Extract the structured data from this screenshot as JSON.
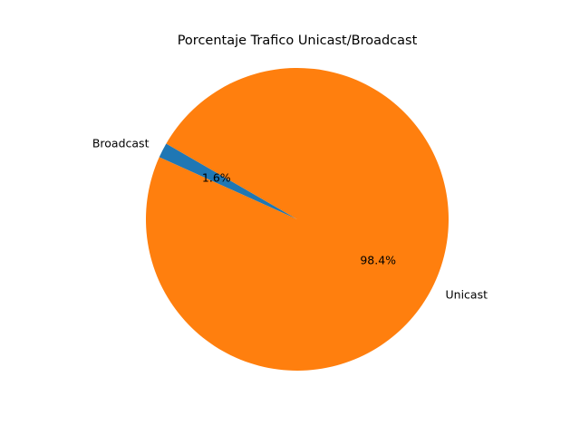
{
  "chart_data": {
    "type": "pie",
    "title": "Porcentaje Trafico Unicast/Broadcast",
    "start_angle_deg": 150,
    "slices": [
      {
        "label": "Broadcast",
        "value": 1.6,
        "pct_label": "1.6%",
        "color": "#1f77b4"
      },
      {
        "label": "Unicast",
        "value": 98.4,
        "pct_label": "98.4%",
        "color": "#ff7f0e"
      }
    ],
    "legend": "none"
  }
}
